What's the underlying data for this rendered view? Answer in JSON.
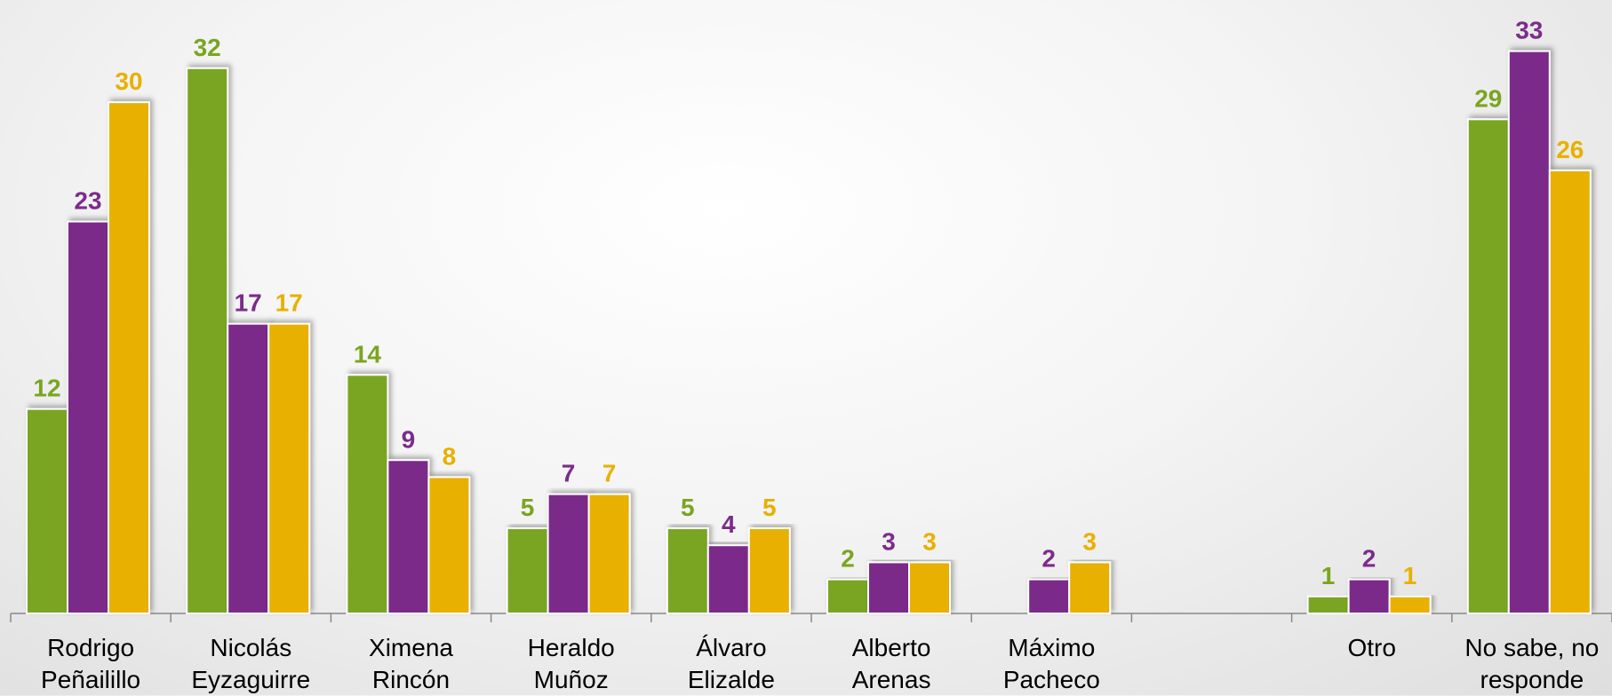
{
  "chart_data": {
    "type": "bar",
    "categories": [
      "Rodrigo Peñailillo",
      "Nicolás Eyzaguirre",
      "Ximena Rincón",
      "Heraldo Muñoz",
      "Álvaro Elizalde",
      "Alberto Arenas",
      "Máximo Pacheco",
      null,
      "Otro",
      "No sabe, no responde"
    ],
    "series": [
      {
        "color": "#7aa520",
        "values": [
          12,
          32,
          14,
          5,
          5,
          2,
          null,
          null,
          1,
          29
        ]
      },
      {
        "color": "#7b2c8a",
        "values": [
          23,
          17,
          9,
          7,
          4,
          3,
          2,
          null,
          2,
          33
        ]
      },
      {
        "color": "#e8b000",
        "values": [
          30,
          17,
          8,
          7,
          5,
          3,
          3,
          null,
          1,
          26
        ]
      }
    ],
    "ylim": [
      0,
      36
    ]
  }
}
